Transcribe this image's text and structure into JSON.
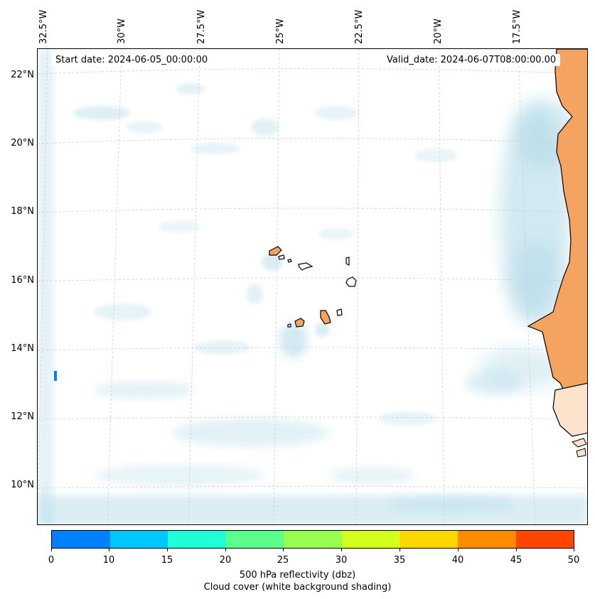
{
  "map": {
    "start_date": "Start date: 2024-06-05_00:00:00",
    "valid_date": "Valid_date: 2024-06-07T08:00:00.00",
    "longitude_labels": [
      "32.5°W",
      "30°W",
      "27.5°W",
      "25°W",
      "22.5°W",
      "20°W",
      "17.5°W"
    ],
    "latitude_labels": [
      "22°N",
      "20°N",
      "18°N",
      "16°N",
      "14°N",
      "12°N",
      "10°N"
    ],
    "region": "Cape Verde islands and West African coast",
    "land_fill_color": "#f4a460",
    "cloud_color": "#add8e6",
    "coastline_color": "#000000",
    "gridline_color": "#cccccc"
  },
  "colorbar": {
    "ticks": [
      "0",
      "10",
      "15",
      "20",
      "25",
      "30",
      "35",
      "40",
      "45",
      "50"
    ],
    "colors": [
      "#0080ff",
      "#00c8ff",
      "#1effd7",
      "#5aff8c",
      "#96ff50",
      "#d2ff1e",
      "#ffd700",
      "#ff8c00",
      "#ff4500"
    ],
    "label_line1": "500 hPa reflectivity (dbz)",
    "label_line2": "Cloud cover (white background shading)"
  }
}
